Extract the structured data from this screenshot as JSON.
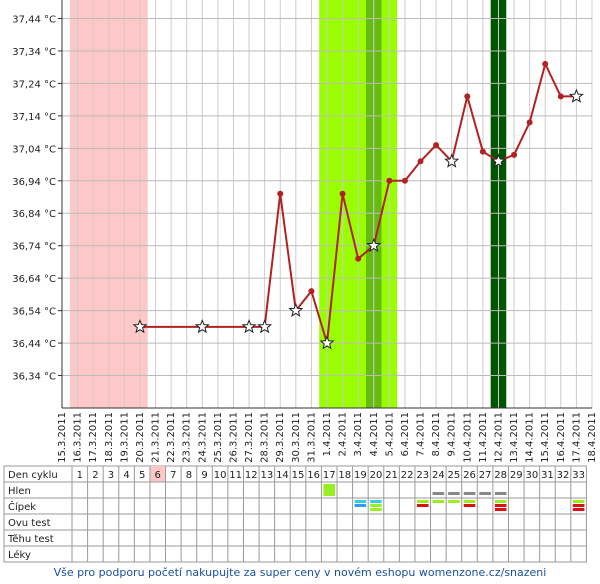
{
  "chart_data": {
    "type": "line",
    "categories": [
      "15.3.2011",
      "16.3.2011",
      "17.3.2011",
      "18.3.2011",
      "19.3.2011",
      "20.3.2011",
      "21.3.2011",
      "22.3.2011",
      "23.3.2011",
      "24.3.2011",
      "25.3.2011",
      "26.3.2011",
      "27.3.2011",
      "28.3.2011",
      "29.3.2011",
      "30.3.2011",
      "31.3.2011",
      "1.4.2011",
      "2.4.2011",
      "3.4.2011",
      "4.4.2011",
      "5.4.2011",
      "6.4.2011",
      "7.4.2011",
      "8.4.2011",
      "9.4.2011",
      "10.4.2011",
      "11.4.2011",
      "12.4.2011",
      "13.4.2011",
      "14.4.2011",
      "15.4.2011",
      "16.4.2011",
      "17.4.2011",
      "18.4.2011"
    ],
    "series": [
      {
        "color": "#b22222",
        "x": [
          "20.3.2011",
          "24.3.2011",
          "27.3.2011",
          "28.3.2011",
          "29.3.2011",
          "30.3.2011",
          "31.3.2011",
          "1.4.2011",
          "2.4.2011",
          "3.4.2011",
          "4.4.2011",
          "5.4.2011",
          "6.4.2011",
          "7.4.2011",
          "8.4.2011",
          "9.4.2011",
          "10.4.2011",
          "11.4.2011",
          "12.4.2011",
          "13.4.2011",
          "14.4.2011",
          "15.4.2011",
          "16.4.2011",
          "17.4.2011"
        ],
        "values": [
          36.49,
          36.49,
          36.49,
          36.49,
          36.9,
          36.54,
          36.6,
          36.44,
          36.9,
          36.7,
          36.74,
          36.94,
          36.94,
          37.0,
          37.05,
          37.0,
          37.2,
          37.03,
          37.0,
          37.02,
          37.12,
          37.3,
          37.2,
          37.2
        ],
        "markers": [
          "star",
          "star",
          "star",
          "star",
          "dot",
          "star",
          "dot",
          "star",
          "dot",
          "dot",
          "star",
          "dot",
          "dot",
          "dot",
          "dot",
          "star",
          "dot",
          "dot",
          "star",
          "dot",
          "dot",
          "dot",
          "dot",
          "star"
        ]
      }
    ],
    "ylim": [
      36.24,
      37.46
    ],
    "yticks": [
      {
        "value": 36.34,
        "label": "36,34 °C"
      },
      {
        "value": 36.44,
        "label": "36,44 °C"
      },
      {
        "value": 36.54,
        "label": "36,54 °C"
      },
      {
        "value": 36.64,
        "label": "36,64 °C"
      },
      {
        "value": 36.74,
        "label": "36,74 °C"
      },
      {
        "value": 36.84,
        "label": "36,84 °C"
      },
      {
        "value": 36.94,
        "label": "36,94 °C"
      },
      {
        "value": 37.04,
        "label": "37,04 °C"
      },
      {
        "value": 37.14,
        "label": "37,14 °C"
      },
      {
        "value": 37.24,
        "label": "37,24 °C"
      },
      {
        "value": 37.34,
        "label": "37,34 °C"
      },
      {
        "value": 37.44,
        "label": "37,44 °C"
      }
    ],
    "grid": true,
    "bands": [
      {
        "from": "16.3.2011",
        "to": "20.3.2011",
        "color": "#ffc8c8"
      },
      {
        "from": "1.4.2011",
        "to": "5.4.2011",
        "color": "#99ff00"
      },
      {
        "from": "4.4.2011",
        "to": "4.4.2011",
        "color": "#66bb11"
      },
      {
        "from": "12.4.2011",
        "to": "12.4.2011",
        "color": "#005500"
      }
    ]
  },
  "cycle_table": {
    "row_labels": [
      "Den cyklu",
      "Hlen",
      "Čípek",
      "Ovu test",
      "Těhu test",
      "Léky"
    ],
    "days": [
      1,
      2,
      3,
      4,
      5,
      6,
      7,
      8,
      9,
      10,
      11,
      12,
      13,
      14,
      15,
      16,
      17,
      18,
      19,
      20,
      21,
      22,
      23,
      24,
      25,
      26,
      27,
      28,
      29,
      30,
      31,
      32,
      33
    ]
  },
  "footer": "Vše pro podporu početí nakupujte za super ceny v novém eshopu womenzone.cz/snazeni"
}
